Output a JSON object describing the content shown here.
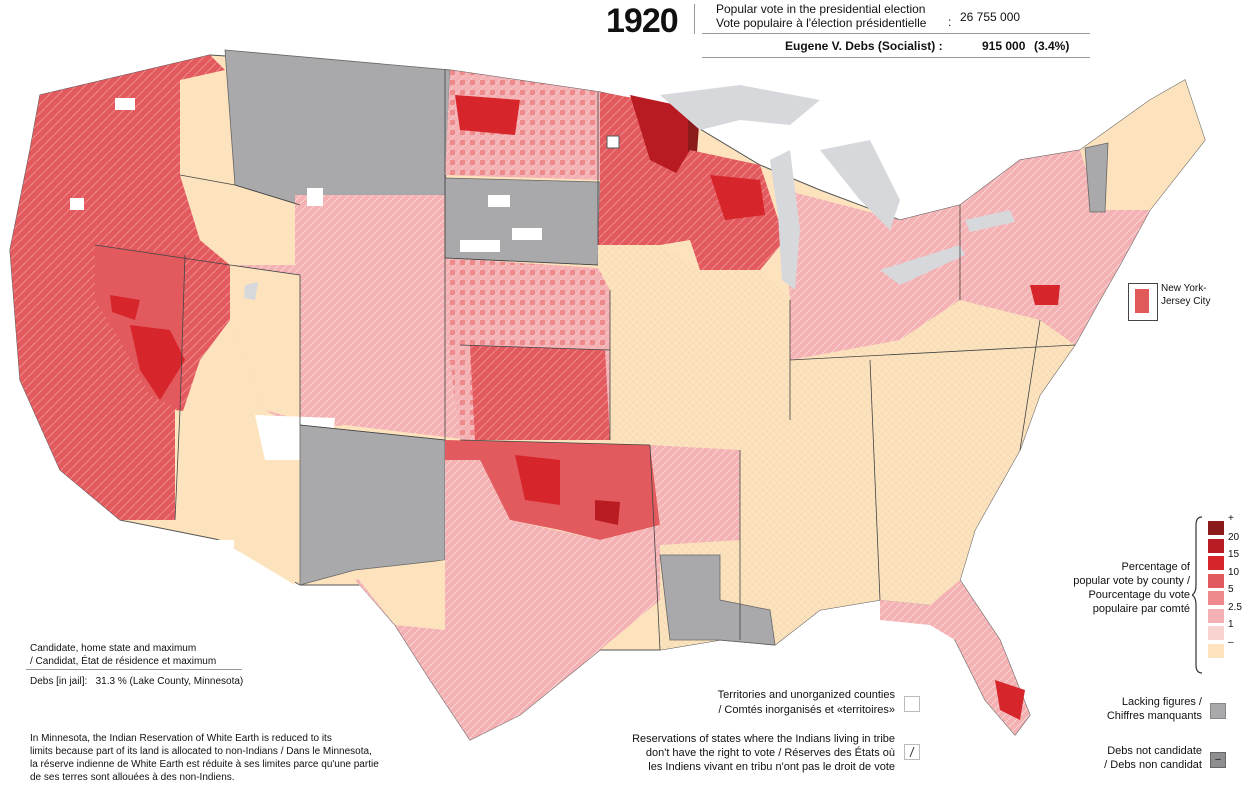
{
  "header": {
    "year": "1920",
    "popular_vote_label_en": "Popular vote in the presidential election",
    "popular_vote_label_fr": "Vote populaire à l'élection présidentielle",
    "colon": ":",
    "popular_vote_total": "26 755 000",
    "candidate_label": "Eugene V. Debs (Socialist) :",
    "candidate_votes": "915 000",
    "candidate_pct": "(3.4%)"
  },
  "inset": {
    "label": "New York-Jersey City",
    "color": "#e05a5a"
  },
  "candidate_box": {
    "title_en": "Candidate, home state and maximum",
    "title_fr": "/ Candidat, État de résidence et maximum",
    "line": "Debs [in jail]:   31.3 % (Lake County, Minnesota)"
  },
  "note": {
    "line1": "In Minnesota, the Indian Reservation of White Earth is reduced to its",
    "line2": "limits because part of its land is allocated to non-Indians / Dans le Minnesota,",
    "line3": "la réserve indienne de White Earth est réduite à ses limites parce qu'une partie",
    "line4": "de ses terres sont allouées à des non-Indiens."
  },
  "legend": {
    "title_line1": "Percentage of",
    "title_line2": "popular vote by county /",
    "title_line3": "Pourcentage du vote",
    "title_line4": "populaire par comté",
    "classes": [
      {
        "label": "+",
        "color": "#8b1a1a"
      },
      {
        "label": "20",
        "color": "#b81c22"
      },
      {
        "label": "15",
        "color": "#d6262b"
      },
      {
        "label": "10",
        "color": "#e35a5e"
      },
      {
        "label": "5",
        "color": "#ee8a8c"
      },
      {
        "label": "2.5",
        "color": "#f4b1b4"
      },
      {
        "label": "1",
        "color": "#f8d3d0"
      },
      {
        "label": "–",
        "color": "#fce3bd"
      }
    ],
    "territories_en": "Territories and unorganized counties",
    "territories_fr": "/ Comtés inorganisés et «territoires»",
    "reservations_line1": "Reservations of states where the Indians living in tribe",
    "reservations_line2": "don't have the right to vote / Réserves des États où",
    "reservations_line3": "les Indiens vivant en tribu n'ont pas le droit de vote",
    "lacking_en": "Lacking figures /",
    "lacking_fr": "Chiffres manquants",
    "not_candidate_en": "Debs not candidate",
    "not_candidate_fr": "/ Debs non candidat",
    "not_candidate_mark": "–",
    "gray_light": "#a9a9ab",
    "gray_dark": "#8e8e90"
  },
  "map": {
    "lakes_color": "#d6d8dc",
    "not_candidate_states": [
      "Montana",
      "South Dakota",
      "New Mexico",
      "Louisiana",
      "Vermont"
    ]
  }
}
